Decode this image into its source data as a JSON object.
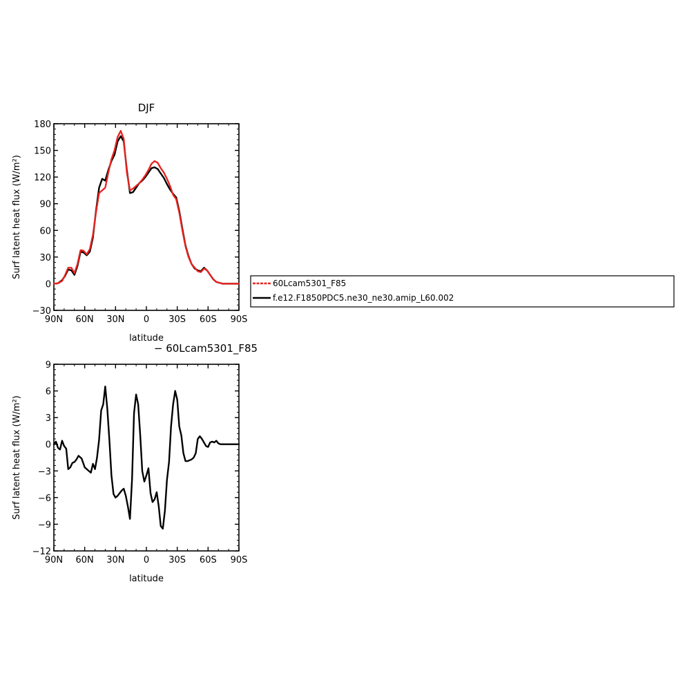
{
  "chart_data": [
    {
      "type": "line",
      "title": "DJF",
      "xlabel": "latitude",
      "ylabel": "Surf latent heat flux (W/m²)",
      "xlim": [
        90,
        -90
      ],
      "ylim": [
        -30,
        180
      ],
      "x_ticks": [
        90,
        60,
        30,
        0,
        -30,
        -60,
        -90
      ],
      "x_tick_labels": [
        "90N",
        "60N",
        "30N",
        "0",
        "30S",
        "60S",
        "90S"
      ],
      "y_ticks": [
        -30,
        0,
        30,
        60,
        90,
        120,
        150,
        180
      ],
      "y_tick_labels": [
        "−30",
        "0",
        "30",
        "60",
        "90",
        "120",
        "150",
        "180"
      ],
      "legend_position": "right",
      "series": [
        {
          "name": "60Lcam5301_F85",
          "color": "#e8231f",
          "style": "dashed",
          "x": [
            90,
            86,
            82,
            79,
            76,
            73,
            70,
            67,
            64,
            61,
            58,
            55,
            52,
            49,
            46,
            43,
            40,
            37,
            34,
            31,
            28,
            25,
            22,
            19,
            16,
            13,
            10,
            7,
            4,
            1,
            -2,
            -5,
            -8,
            -11,
            -14,
            -17,
            -20,
            -23,
            -26,
            -29,
            -32,
            -35,
            -38,
            -41,
            -44,
            -47,
            -50,
            -53,
            -56,
            -59,
            -62,
            -65,
            -68,
            -71,
            -74,
            -77,
            -80,
            -83,
            -86,
            -90
          ],
          "values": [
            0,
            0.5,
            3,
            10,
            18,
            18,
            12,
            22,
            38,
            37,
            33,
            39,
            55,
            80,
            102,
            105,
            108,
            125,
            140,
            150,
            165,
            172,
            163,
            125,
            105,
            107,
            110,
            113,
            117,
            122,
            128,
            135,
            138,
            136,
            130,
            125,
            118,
            110,
            100,
            95,
            80,
            60,
            42,
            30,
            22,
            18,
            14,
            13,
            17,
            15,
            10,
            5,
            2,
            1,
            0,
            0,
            0,
            0,
            0,
            0
          ]
        },
        {
          "name": "f.e12.F1850PDC5.ne30_ne30.amip_L60.002",
          "color": "#000000",
          "style": "solid",
          "x": [
            90,
            86,
            82,
            79,
            76,
            73,
            70,
            67,
            64,
            61,
            58,
            55,
            52,
            49,
            46,
            43,
            40,
            37,
            34,
            31,
            28,
            25,
            22,
            19,
            16,
            13,
            10,
            7,
            4,
            1,
            -2,
            -5,
            -8,
            -11,
            -14,
            -17,
            -20,
            -23,
            -26,
            -29,
            -32,
            -35,
            -38,
            -41,
            -44,
            -47,
            -50,
            -53,
            -56,
            -59,
            -62,
            -65,
            -68,
            -71,
            -74,
            -77,
            -80,
            -83,
            -86,
            -90
          ],
          "values": [
            0,
            0.5,
            4,
            9,
            16,
            15,
            10,
            20,
            36,
            35,
            32,
            36,
            52,
            82,
            108,
            118,
            116,
            128,
            138,
            145,
            160,
            166,
            160,
            128,
            102,
            103,
            108,
            113,
            116,
            120,
            125,
            130,
            131,
            129,
            124,
            119,
            112,
            106,
            101,
            97,
            82,
            62,
            43,
            31,
            22,
            17,
            15,
            14,
            18,
            15,
            10,
            5,
            2,
            1,
            0,
            0,
            0,
            0,
            0,
            0
          ]
        }
      ]
    },
    {
      "type": "line",
      "title": "− 60Lcam5301_F85",
      "xlabel": "latitude",
      "ylabel": "Surf latent heat flux (W/m²)",
      "xlim": [
        90,
        -90
      ],
      "ylim": [
        -12,
        9
      ],
      "x_ticks": [
        90,
        60,
        30,
        0,
        -30,
        -60,
        -90
      ],
      "x_tick_labels": [
        "90N",
        "60N",
        "30N",
        "0",
        "30S",
        "60S",
        "90S"
      ],
      "y_ticks": [
        -12,
        -9,
        -6,
        -3,
        0,
        3,
        6,
        9
      ],
      "y_tick_labels": [
        "−12",
        "−9",
        "−6",
        "−3",
        "0",
        "3",
        "6",
        "9"
      ],
      "series": [
        {
          "color": "#000000",
          "style": "solid",
          "x": [
            90,
            88,
            86,
            84,
            82,
            80,
            78,
            76,
            74,
            72,
            70,
            68,
            66,
            63,
            60,
            57,
            54,
            52,
            50,
            48,
            46,
            44,
            42,
            40,
            38,
            36,
            34,
            32,
            30,
            28,
            26,
            24,
            22,
            20,
            18,
            16,
            14,
            12,
            10,
            8,
            6,
            4,
            2,
            0,
            -2,
            -4,
            -6,
            -8,
            -10,
            -12,
            -14,
            -16,
            -18,
            -20,
            -22,
            -24,
            -26,
            -28,
            -30,
            -32,
            -34,
            -36,
            -38,
            -40,
            -42,
            -44,
            -46,
            -48,
            -50,
            -52,
            -54,
            -56,
            -58,
            -60,
            -62,
            -64,
            -66,
            -68,
            -70,
            -72,
            -74,
            -76,
            -78,
            -80,
            -82,
            -84,
            -86,
            -88,
            -90
          ],
          "values": [
            0,
            0.3,
            -0.4,
            -0.6,
            0.4,
            -0.2,
            -0.5,
            -2.8,
            -2.6,
            -2.1,
            -2.0,
            -1.7,
            -1.3,
            -1.6,
            -2.6,
            -2.9,
            -3.2,
            -2.2,
            -2.8,
            -1.5,
            0.5,
            3.8,
            4.5,
            6.5,
            4.0,
            0.5,
            -3.5,
            -5.6,
            -6.0,
            -5.8,
            -5.5,
            -5.2,
            -5.0,
            -5.8,
            -7.0,
            -8.4,
            -4.0,
            3.5,
            5.6,
            4.5,
            1.0,
            -3.0,
            -4.2,
            -3.5,
            -2.7,
            -5.5,
            -6.5,
            -6.2,
            -5.4,
            -7.0,
            -9.2,
            -9.5,
            -7.5,
            -4.0,
            -2.0,
            2.0,
            4.5,
            6.0,
            5.0,
            2.0,
            1.0,
            -1.0,
            -1.9,
            -1.9,
            -1.8,
            -1.7,
            -1.5,
            -1.0,
            0.6,
            0.9,
            0.6,
            0.2,
            -0.2,
            -0.3,
            0.2,
            0.3,
            0.2,
            0.4,
            0.1,
            0,
            0,
            0,
            0,
            0,
            0,
            0,
            0,
            0,
            0
          ]
        }
      ]
    }
  ]
}
